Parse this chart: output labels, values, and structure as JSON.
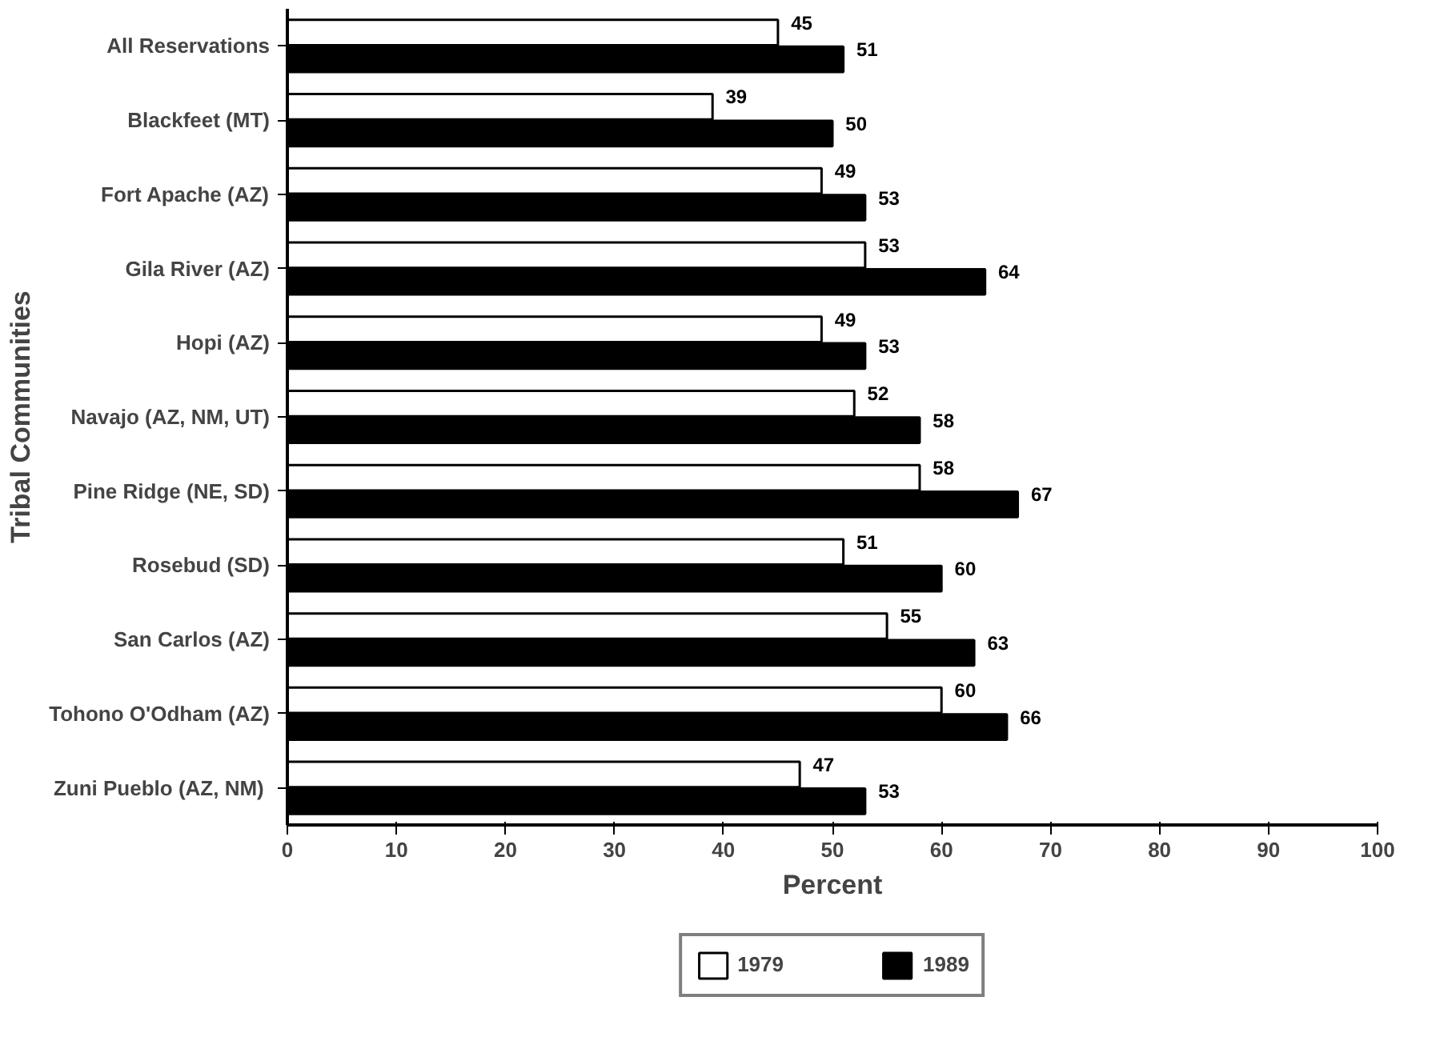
{
  "chart_data": {
    "type": "bar",
    "orientation": "horizontal",
    "ylabel": "Tribal Communities",
    "xlabel": "Percent",
    "categories": [
      "All Reservations",
      "Blackfeet (MT)",
      "Fort Apache (AZ)",
      "Gila River (AZ)",
      "Hopi (AZ)",
      "Navajo (AZ, NM, UT)",
      "Pine Ridge (NE, SD)",
      "Rosebud (SD)",
      "San Carlos (AZ)",
      "Tohono O'Odham (AZ)",
      "Zuni Pueblo  (AZ, NM)"
    ],
    "series": [
      {
        "name": "1979",
        "color": "#ffffff",
        "values": [
          45,
          39,
          49,
          53,
          49,
          52,
          58,
          51,
          55,
          60,
          47
        ]
      },
      {
        "name": "1989",
        "color": "#000000",
        "values": [
          51,
          50,
          53,
          64,
          53,
          58,
          67,
          60,
          63,
          66,
          53
        ]
      }
    ],
    "xlim": [
      0,
      100
    ],
    "xticks": [
      0,
      10,
      20,
      30,
      40,
      50,
      60,
      70,
      80,
      90,
      100
    ],
    "data_labels": true,
    "legend": "bottom",
    "grid": false
  }
}
